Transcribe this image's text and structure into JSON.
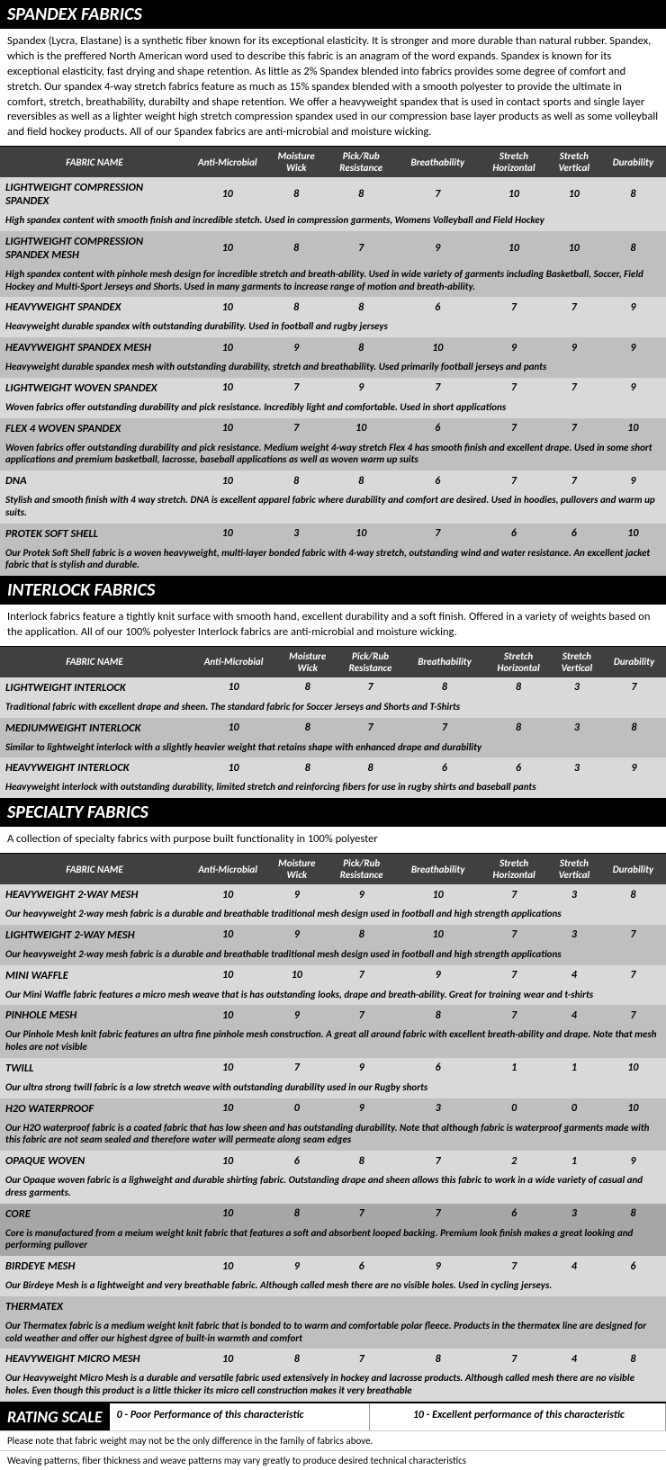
{
  "columns": [
    "Anti-Microbial",
    "Moisture Wick",
    "Pick/Rub Resistance",
    "Breathability",
    "Stretch Horizontal",
    "Stretch Vertical",
    "Durability"
  ],
  "header_name": "FABRIC NAME",
  "sections": [
    {
      "title": "SPANDEX FABRICS",
      "intro": "Spandex (Lycra, Elastane) is a synthetic fiber known for its exceptional elasticity. It is stronger and more durable than natural rubber. Spandex, which is the preffered North American word used to describe this fabric is an anagram of the word expands.  Spandex is known for its exceptional elasticity, fast drying and shape retention.  As little as 2% Spandex blended into fabrics provides some degree of comfort and stretch.  Our spandex 4-way stretch fabrics feature as much as 15% spandex blended with a smooth polyester to provide the ultimate in comfort, stretch, breathability, durabilty and shape retention.  We offer a heavyweight spandex that is used in contact sports and single layer reversibles as well as a lighter weight high stretch compression spandex used in our compression base layer products as well as some volleyball and field hockey products.  All of our Spandex fabrics are anti-microbial and moisture wicking.",
      "rows": [
        {
          "name": "LIGHTWEIGHT COMPRESSION SPANDEX",
          "vals": [
            10,
            8,
            8,
            7,
            10,
            10,
            8
          ],
          "shade": "lt",
          "desc": "High spandex content with smooth finish and incredible stetch.  Used in compression garments, Womens Volleyball and Field Hockey"
        },
        {
          "name": "LIGHTWEIGHT COMPRESSION SPANDEX MESH",
          "vals": [
            10,
            8,
            7,
            9,
            10,
            10,
            8
          ],
          "shade": "md",
          "desc": "High spandex content with pinhole mesh design for incredible stretch and breath-ability.  Used in wide variety of garments including Basketball, Soccer, Field Hockey and Multi-Sport Jerseys and Shorts.  Used in many garments to increase range of motion and breath-ability."
        },
        {
          "name": "HEAVYWEIGHT SPANDEX",
          "vals": [
            10,
            8,
            8,
            6,
            7,
            7,
            9
          ],
          "shade": "lt",
          "desc": "Heavyweight durable spandex with outstanding durability.  Used in football and rugby jerseys"
        },
        {
          "name": "HEAVYWEIGHT SPANDEX MESH",
          "vals": [
            10,
            9,
            8,
            10,
            9,
            9,
            9
          ],
          "shade": "md",
          "desc": "Heavyweight durable spandex mesh with outstanding durability, stretch and breathability.  Used primarily football jerseys and pants"
        },
        {
          "name": "LIGHTWEIGHT WOVEN SPANDEX",
          "vals": [
            10,
            7,
            9,
            7,
            7,
            7,
            9
          ],
          "shade": "lt",
          "desc": "Woven fabrics offer outstanding durability and pick resistance.  Incredibly light and comfortable.  Used in short applications"
        },
        {
          "name": "FLEX 4 WOVEN SPANDEX",
          "vals": [
            10,
            7,
            10,
            6,
            7,
            7,
            10
          ],
          "shade": "md",
          "desc": "Woven fabrics offer outstanding durability and pick resistance.  Medium weight 4-way stretch Flex 4 has smooth finish and excellent drape.  Used in some short applications and premium basketball, lacrosse, baseball applications as well as woven warm up suits"
        },
        {
          "name": "DNA",
          "vals": [
            10,
            8,
            8,
            6,
            7,
            7,
            9
          ],
          "shade": "lt",
          "desc": "Stylish and smooth finish with 4 way stretch.  DNA is excellent apparel fabric where durability and comfort are desired.  Used in hoodies, pullovers and warm up suits."
        },
        {
          "name": "PROTEK SOFT SHELL",
          "vals": [
            10,
            3,
            10,
            7,
            6,
            6,
            10
          ],
          "shade": "md",
          "desc": "Our Protek Soft Shell fabric is a woven heavyweight, multi-layer bonded fabric with 4-way stretch, outstanding wind and water resistance.  An excellent jacket fabric that is stylish and durable."
        }
      ]
    },
    {
      "title": "INTERLOCK FABRICS",
      "intro": "Interlock fabrics feature a tightly knit surface with smooth hand, excellent durability and a soft finish.  Offered in a variety of weights based on the application.  All of our 100% polyester Interlock fabrics are anti-microbial and moisture wicking.",
      "rows": [
        {
          "name": "LIGHTWEIGHT INTERLOCK",
          "vals": [
            10,
            8,
            7,
            8,
            8,
            3,
            7
          ],
          "shade": "lt",
          "desc": "Traditional fabric with excellent drape and sheen. The standard fabric for Soccer Jerseys and Shorts and T-Shirts"
        },
        {
          "name": "MEDIUMWEIGHT INTERLOCK",
          "vals": [
            10,
            8,
            7,
            7,
            8,
            3,
            8
          ],
          "shade": "md",
          "desc": "Similar to lightweight interlock with a slightly heavier weight that retains shape with enhanced drape and durability"
        },
        {
          "name": "HEAVYWEIGHT INTERLOCK",
          "vals": [
            10,
            8,
            8,
            6,
            6,
            3,
            9
          ],
          "shade": "lt",
          "desc": "Heavyweight interlock with outstanding durability, limited stretch and reinforcing fibers for use in rugby shirts and baseball pants"
        }
      ]
    },
    {
      "title": "SPECIALTY FABRICS",
      "intro": "A collection of specialty fabrics with purpose built functionality in 100% polyester",
      "rows": [
        {
          "name": "HEAVYWEIGHT 2-WAY MESH",
          "vals": [
            10,
            9,
            9,
            10,
            7,
            3,
            8
          ],
          "shade": "lt",
          "desc": "Our heavyweight 2-way mesh fabric is a durable and breathable traditional mesh design used in football and high strength applications"
        },
        {
          "name": "LIGHTWEIGHT 2-WAY MESH",
          "vals": [
            10,
            9,
            8,
            10,
            7,
            3,
            7
          ],
          "shade": "md",
          "desc": "Our heavyweight 2-way mesh fabric is a durable and breathable traditional mesh design used in football and high strength applications"
        },
        {
          "name": "MINI WAFFLE",
          "vals": [
            10,
            10,
            7,
            9,
            7,
            4,
            7
          ],
          "shade": "lt",
          "desc": "Our Mini Waffle fabric features a micro mesh weave that is has outstanding looks, drape and breath-ability.  Great for training wear and t-shirts"
        },
        {
          "name": "PINHOLE MESH",
          "vals": [
            10,
            9,
            7,
            8,
            7,
            4,
            7
          ],
          "shade": "md",
          "desc": "Our Pinhole Mesh knit fabric features an ultra fine pinhole mesh construction.  A great all around fabric with excellent breath-ability and drape.  Note that mesh holes are not visible"
        },
        {
          "name": "TWILL",
          "vals": [
            10,
            7,
            9,
            6,
            1,
            1,
            10
          ],
          "shade": "lt",
          "desc": "Our ultra strong twill fabric is a low stretch weave with outstanding durability used in our Rugby shorts"
        },
        {
          "name": "H2O WATERPROOF",
          "vals": [
            10,
            0,
            9,
            3,
            0,
            0,
            10
          ],
          "shade": "md",
          "desc": "Our H2O waterproof fabric is a coated fabric that has low sheen and has outstanding durability.  Note that although fabric is waterproof garments made with this fabric are not seam sealed and therefore water will permeate along seam edges"
        },
        {
          "name": "OPAQUE  WOVEN",
          "vals": [
            10,
            6,
            8,
            7,
            2,
            1,
            9
          ],
          "shade": "lt",
          "desc": "Our Opaque woven fabric is a lighweight and durable shirting fabric.  Outstanding drape and sheen allows this fabric to work in a wide variety of casual and dress garments."
        },
        {
          "name": "CORE",
          "vals": [
            10,
            8,
            7,
            7,
            6,
            3,
            8
          ],
          "shade": "dk",
          "desc": "Core is manufactured from a meium weight knit fabric that features a soft and absorbent looped backing.  Premium look finish makes a great looking and performing pullover"
        },
        {
          "name": "BIRDEYE MESH",
          "vals": [
            10,
            9,
            6,
            9,
            7,
            4,
            6
          ],
          "shade": "lt",
          "desc": "Our Birdeye Mesh is a lightweight and very breathable fabric.  Although called mesh there are no visible holes.  Used in cycling jerseys."
        },
        {
          "name": "THERMATEX",
          "vals": null,
          "shade": "md",
          "desc": "Our Thermatex fabric is a medium weight knit fabric that is bonded to to warm and comfortable polar fleece. Products in the thermatex line are designed for cold weather and offer our highest dgree of built-in warmth and comfort"
        },
        {
          "name": "HEAVYWEIGHT MICRO MESH",
          "vals": [
            10,
            8,
            7,
            8,
            7,
            4,
            8
          ],
          "shade": "lt",
          "desc": "Our Heavyweight Micro Mesh is a durable and versatile fabric used extensively in hockey and lacrosse products.  Although called mesh there are no visible holes.  Even though this product is a little thicker its micro cell construction makes it very breathable"
        }
      ]
    }
  ],
  "rating": {
    "label": "RATING SCALE",
    "low": "0 - Poor Performance of this characteristic",
    "high": "10 - Excellent performance of this characteristic"
  },
  "footnotes": [
    "Please note that fabric weight may not be the only difference in the family of fabrics above.",
    "Weaving patterns, fiber thickness and weave patterns may vary greatly to produce desired technical characteristics"
  ]
}
